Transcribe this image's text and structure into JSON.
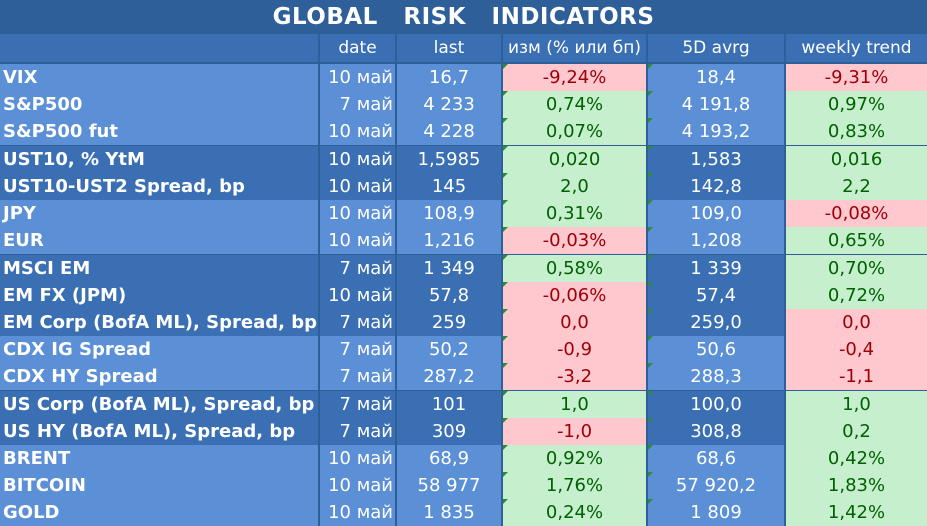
{
  "title": "GLOBAL   RISK   INDICATORS",
  "headers": [
    "",
    "date",
    "last",
    "изм (% или бп)",
    "5D avrg",
    "weekly trend"
  ],
  "colors": {
    "positive_bg": "#C6EFCE",
    "positive_text": "#006100",
    "negative_bg": "#FFC7CE",
    "negative_text": "#9C0006",
    "dark_blue": "#2E5F99",
    "mid_blue": "#3A6FB3",
    "light_blue": "#5B8FD6"
  },
  "rows": [
    {
      "name": "VIX",
      "date": "10 май",
      "last": "16,7",
      "chg": "-9,24%",
      "avg": "18,4",
      "trend": "-9,31%"
    },
    {
      "name": "S&P500",
      "date": "7 май",
      "last": "4 233",
      "chg": "0,74%",
      "avg": "4 191,8",
      "trend": "0,97%"
    },
    {
      "name": "S&P500 fut",
      "date": "10 май",
      "last": "4 228",
      "chg": "0,07%",
      "avg": "4 193,2",
      "trend": "0,83%"
    },
    {
      "name": "UST10, % YtM",
      "date": "10 май",
      "last": "1,5985",
      "chg": "0,020",
      "avg": "1,583",
      "trend": "0,016"
    },
    {
      "name": "UST10-UST2 Spread, bp",
      "date": "10 май",
      "last": "145",
      "chg": "2,0",
      "avg": "142,8",
      "trend": "2,2"
    },
    {
      "name": "JPY",
      "date": "10 май",
      "last": "108,9",
      "chg": "0,31%",
      "avg": "109,0",
      "trend": "-0,08%"
    },
    {
      "name": "EUR",
      "date": "10 май",
      "last": "1,216",
      "chg": "-0,03%",
      "avg": "1,208",
      "trend": "0,65%"
    },
    {
      "name": "MSCI EM",
      "date": "7 май",
      "last": "1 349",
      "chg": "0,58%",
      "avg": "1 339",
      "trend": "0,70%"
    },
    {
      "name": "EM FX (JPM)",
      "date": "10 май",
      "last": "57,8",
      "chg": "-0,06%",
      "avg": "57,4",
      "trend": "0,72%"
    },
    {
      "name": "EM Corp (BofA ML), Spread, bp",
      "date": "7 май",
      "last": "259",
      "chg": "0,0",
      "avg": "259,0",
      "trend": "0,0"
    },
    {
      "name": "CDX IG Spread",
      "date": "7 май",
      "last": "50,2",
      "chg": "-0,9",
      "avg": "50,6",
      "trend": "-0,4"
    },
    {
      "name": "CDX HY Spread",
      "date": "7 май",
      "last": "287,2",
      "chg": "-3,2",
      "avg": "288,3",
      "trend": "-1,1"
    },
    {
      "name": "US Corp (BofA ML), Spread, bp",
      "date": "7 май",
      "last": "101",
      "chg": "1,0",
      "avg": "100,0",
      "trend": "1,0"
    },
    {
      "name": "US HY (BofA ML), Spread, bp",
      "date": "7 май",
      "last": "309",
      "chg": "-1,0",
      "avg": "308,8",
      "trend": "0,2"
    },
    {
      "name": "BRENT",
      "date": "10 май",
      "last": "68,9",
      "chg": "0,92%",
      "avg": "68,6",
      "trend": "0,42%"
    },
    {
      "name": "BITCOIN",
      "date": "10 май",
      "last": "58 977",
      "chg": "1,76%",
      "avg": "57 920,2",
      "trend": "1,83%"
    },
    {
      "name": "GOLD",
      "date": "10 май",
      "last": "1 835",
      "chg": "0,24%",
      "avg": "1 809",
      "trend": "1,42%"
    }
  ]
}
